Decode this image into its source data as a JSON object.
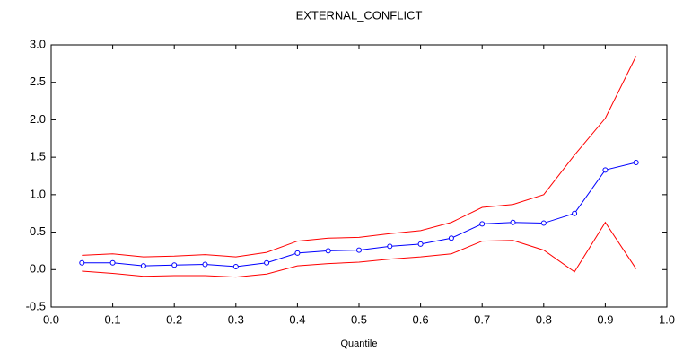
{
  "chart_data": {
    "type": "line",
    "title": "EXTERNAL_CONFLICT",
    "x_label": "Quantile",
    "x": [
      0.05,
      0.1,
      0.15,
      0.2,
      0.25,
      0.3,
      0.35,
      0.4,
      0.45,
      0.5,
      0.55,
      0.6,
      0.65,
      0.7,
      0.75,
      0.8,
      0.85,
      0.9,
      0.95
    ],
    "series": [
      {
        "color": "#ff0000",
        "markers": false,
        "values": [
          0.19,
          0.21,
          0.17,
          0.18,
          0.2,
          0.17,
          0.23,
          0.38,
          0.42,
          0.43,
          0.48,
          0.52,
          0.63,
          0.83,
          0.87,
          1.0,
          1.53,
          2.02,
          2.85
        ]
      },
      {
        "color": "#ff0000",
        "markers": false,
        "values": [
          -0.02,
          -0.05,
          -0.09,
          -0.08,
          -0.08,
          -0.1,
          -0.06,
          0.05,
          0.08,
          0.1,
          0.14,
          0.17,
          0.21,
          0.38,
          0.39,
          0.26,
          -0.03,
          0.63,
          0.01
        ]
      },
      {
        "color": "#0000ff",
        "markers": true,
        "values": [
          0.09,
          0.09,
          0.05,
          0.06,
          0.07,
          0.04,
          0.09,
          0.22,
          0.25,
          0.26,
          0.31,
          0.34,
          0.42,
          0.61,
          0.63,
          0.62,
          0.75,
          1.33,
          1.43
        ]
      }
    ],
    "xlim": [
      0,
      1
    ],
    "xticks": [
      {
        "value": 0,
        "label": "0.0"
      },
      0.1,
      0.2,
      0.3,
      0.4,
      0.5,
      0.6,
      0.7,
      0.8,
      0.9,
      {
        "value": 1,
        "label": "1.0"
      }
    ],
    "ylim": [
      -0.5,
      3
    ],
    "yticks": [
      -0.5,
      {
        "value": 0,
        "label": "0.0"
      },
      0.5,
      {
        "value": 1,
        "label": "1.0"
      },
      1.5,
      {
        "value": 2,
        "label": "2.0"
      },
      2.5,
      {
        "value": 3,
        "label": "3.0"
      }
    ],
    "grid": false
  }
}
